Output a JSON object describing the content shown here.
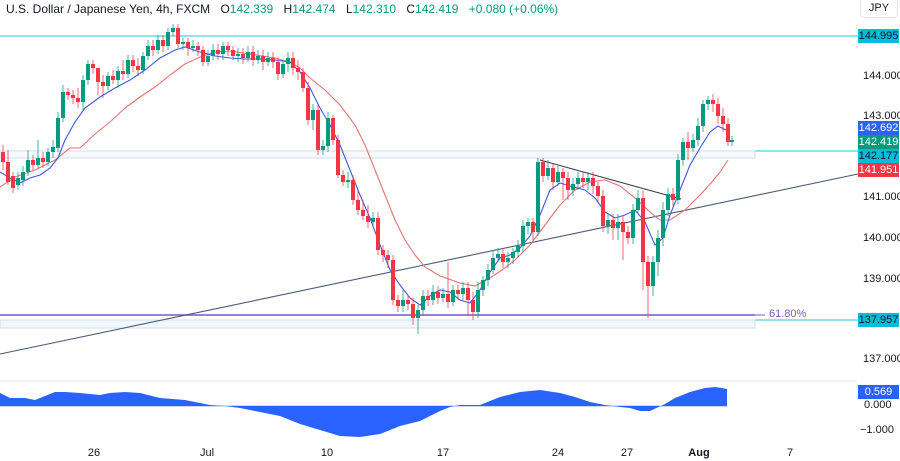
{
  "header": {
    "symbol": "U.S. Dollar / Japanese Yen, 4h, FXCM",
    "open_label": "O",
    "open": "142.339",
    "high_label": "H",
    "high": "142.474",
    "low_label": "L",
    "low": "142.310",
    "close_label": "C",
    "close": "142.419",
    "change": "+0.080 (+0.06%)",
    "currency": "JPY"
  },
  "price_axis": {
    "ticks": [
      "144.000",
      "143.000",
      "141.000",
      "140.000",
      "139.000",
      "137.000"
    ],
    "tags": {
      "resistance_top": "144.995",
      "ema_fast": "142.692",
      "last_price": "142.419",
      "resistance_mid": "142.177",
      "ema_slow": "141.951",
      "support_bottom": "137.957"
    }
  },
  "oscillator_axis": {
    "value_tag": "0.569",
    "ticks": [
      "0.000",
      "−1.000"
    ]
  },
  "fib_label": "61.80%",
  "time_axis": [
    "26",
    "Jul",
    "10",
    "17",
    "24",
    "27",
    "Aug",
    "7"
  ],
  "colors": {
    "up": "#089981",
    "down": "#f23645",
    "ema_fast": "#2962ff",
    "ema_slow": "#e57373",
    "hline": "#26c6da",
    "tag_cyan": "#00bcd4",
    "tag_blue": "#2962ff",
    "tag_green": "#089981",
    "tag_red": "#f23645",
    "trendline": "#4a5a7a",
    "fib": "#7e57c2",
    "oscillator": "#2962ff"
  },
  "chart_data": {
    "type": "candlestick",
    "title": "U.S. Dollar / Japanese Yen, 4h, FXCM",
    "xlabel": "",
    "ylabel": "JPY",
    "ylim": [
      136.6,
      145.8
    ],
    "x_ticks": [
      "26",
      "Jul",
      "10",
      "17",
      "24",
      "27",
      "Aug",
      "7"
    ],
    "horizontal_levels": [
      144.995,
      142.177,
      137.957
    ],
    "fibonacci": {
      "level": "61.80%",
      "price": 138.05
    },
    "last_values": {
      "open": 142.339,
      "high": 142.474,
      "low": 142.31,
      "close": 142.419,
      "change": 0.08,
      "change_pct": 0.06
    },
    "moving_averages": [
      {
        "name": "EMA fast",
        "last": 142.692,
        "color": "#2962ff"
      },
      {
        "name": "EMA slow",
        "last": 141.951,
        "color": "#e57373"
      }
    ],
    "approx_closes": [
      {
        "date": "Jun 22",
        "close": 142.0
      },
      {
        "date": "Jun 23",
        "close": 141.3
      },
      {
        "date": "Jun 26",
        "close": 143.5
      },
      {
        "date": "Jun 28",
        "close": 144.3
      },
      {
        "date": "Jun 30",
        "close": 144.9
      },
      {
        "date": "Jul 3",
        "close": 144.4
      },
      {
        "date": "Jul 6",
        "close": 144.0
      },
      {
        "date": "Jul 7",
        "close": 142.7
      },
      {
        "date": "Jul 10",
        "close": 141.2
      },
      {
        "date": "Jul 12",
        "close": 139.5
      },
      {
        "date": "Jul 13",
        "close": 138.3
      },
      {
        "date": "Jul 14",
        "close": 138.9
      },
      {
        "date": "Jul 17",
        "close": 138.5
      },
      {
        "date": "Jul 19",
        "close": 139.5
      },
      {
        "date": "Jul 20",
        "close": 140.0
      },
      {
        "date": "Jul 21",
        "close": 141.8
      },
      {
        "date": "Jul 24",
        "close": 141.5
      },
      {
        "date": "Jul 25",
        "close": 140.4
      },
      {
        "date": "Jul 27",
        "close": 140.4
      },
      {
        "date": "Jul 28",
        "close": 138.7
      },
      {
        "date": "Jul 31",
        "close": 142.1
      },
      {
        "date": "Aug 1",
        "close": 143.4
      },
      {
        "date": "Aug 2",
        "close": 142.42
      }
    ],
    "oscillator": {
      "last": 0.569,
      "y_ticks": [
        0.0,
        -1.0
      ],
      "approx_values": [
        0.35,
        0.2,
        0.45,
        0.35,
        0.35,
        0.3,
        0.1,
        -0.1,
        -0.7,
        -1.1,
        -0.6,
        -0.1,
        0.2,
        0.6,
        0.45,
        0.0,
        -0.35,
        0.1,
        0.55
      ]
    }
  }
}
